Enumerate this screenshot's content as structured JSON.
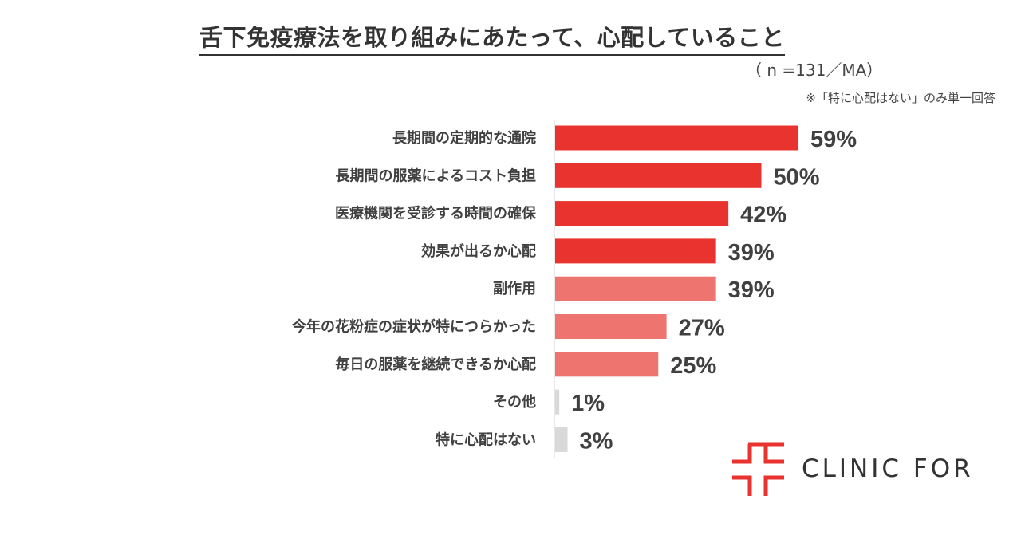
{
  "chart_data": {
    "type": "bar",
    "orientation": "horizontal",
    "title": "舌下免疫療法を取り組みにあたって、心配していること",
    "subtitle": "（ n =131／MA）",
    "note": "※「特に心配はない」のみ単一回答",
    "categories": [
      "長期間の定期的な通院",
      "長期間の服薬によるコスト負担",
      "医療機関を受診する時間の確保",
      "効果が出るか心配",
      "副作用",
      "今年の花粉症の症状が特につらかった",
      "毎日の服薬を継続できるか心配",
      "その他",
      "特に心配はない"
    ],
    "values": [
      59,
      50,
      42,
      39,
      39,
      27,
      25,
      1,
      3
    ],
    "labels": [
      "59%",
      "50%",
      "42%",
      "39%",
      "39%",
      "27%",
      "25%",
      "1%",
      "3%"
    ],
    "bar_colors": [
      "#e8332f",
      "#e8332f",
      "#e8332f",
      "#e8332f",
      "#ee7470",
      "#ee7470",
      "#ee7470",
      "#d9d9d9",
      "#d9d9d9"
    ],
    "unit": "%",
    "xlim": [
      0,
      100
    ]
  },
  "logo": {
    "text": "CLINIC FOR",
    "color": "#e8332f"
  }
}
